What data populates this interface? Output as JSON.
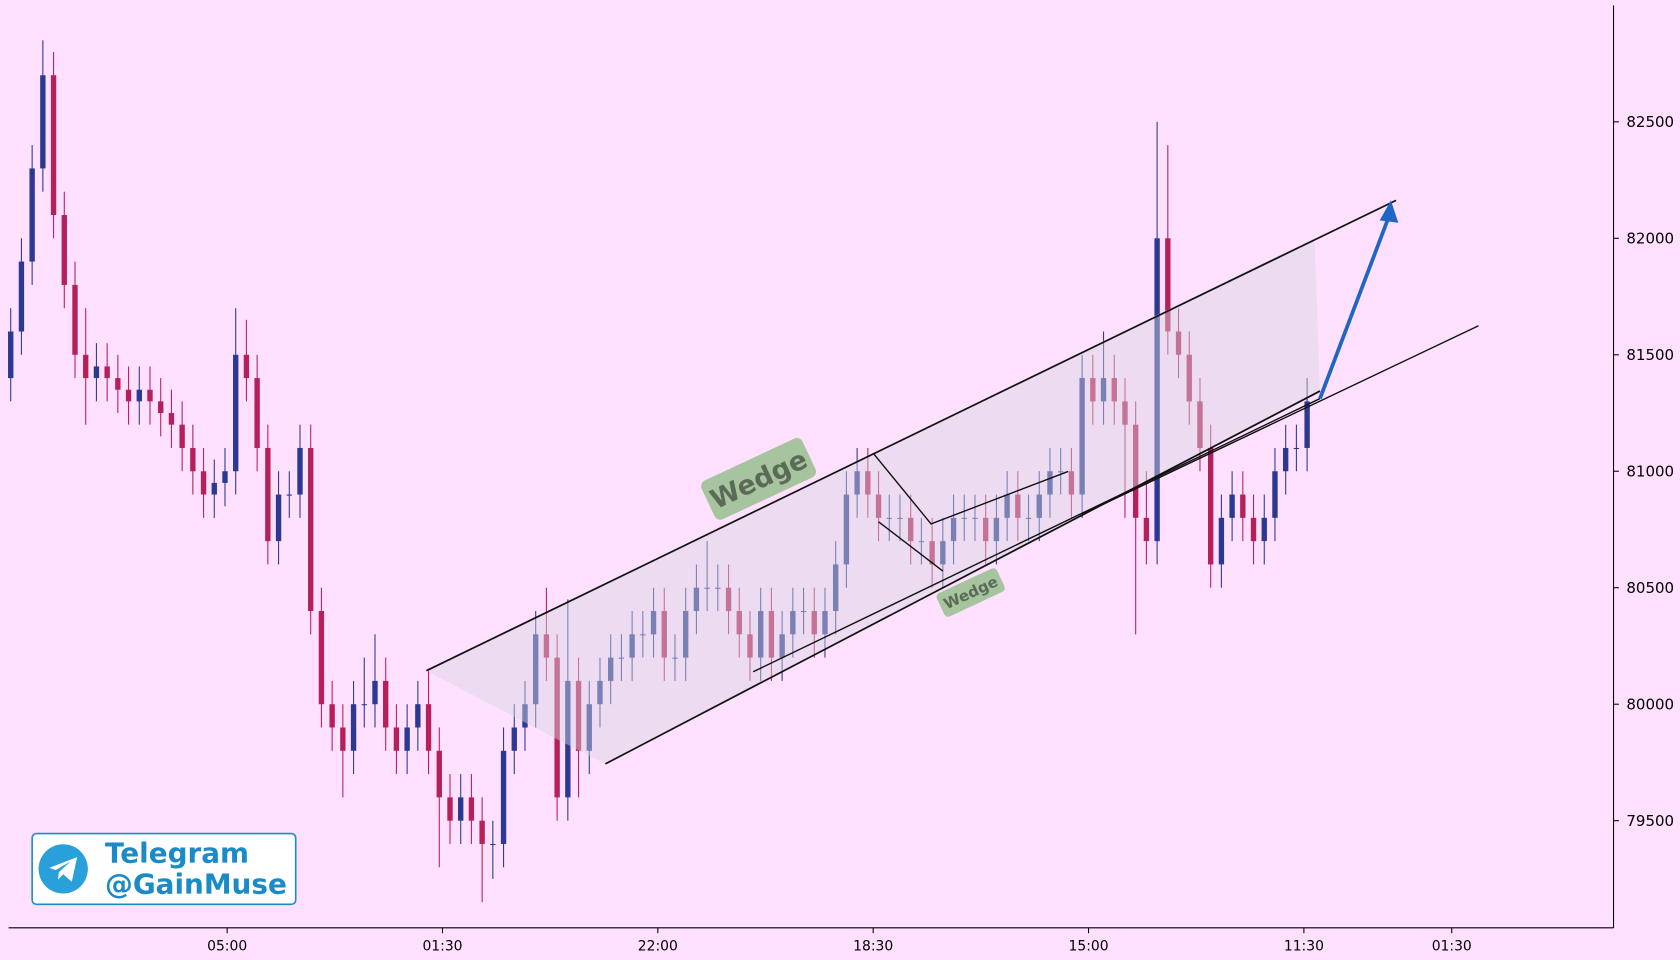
{
  "chart_data": {
    "type": "candlestick",
    "x": [
      0,
      1,
      2,
      3,
      4,
      5,
      6,
      7,
      8,
      9,
      10,
      11,
      12,
      13,
      14,
      15,
      16,
      17,
      18,
      19,
      20,
      21,
      22,
      23,
      24,
      25,
      26,
      27,
      28,
      29,
      30,
      31,
      32,
      33,
      34,
      35,
      36,
      37,
      38,
      39,
      40,
      41,
      42,
      43,
      44,
      45,
      46,
      47,
      48,
      49,
      50,
      51,
      52,
      53,
      54,
      55,
      56,
      57,
      58,
      59,
      60,
      61,
      62,
      63,
      64,
      65,
      66,
      67,
      68,
      69,
      70,
      71,
      72,
      73,
      74,
      75,
      76,
      77,
      78,
      79,
      80,
      81,
      82,
      83,
      84,
      85,
      86,
      87,
      88,
      89,
      90,
      91,
      92,
      93,
      94,
      95,
      96,
      97,
      98,
      99,
      100,
      101,
      102,
      103,
      104,
      105,
      106,
      107,
      108,
      109,
      110,
      111,
      112,
      113,
      114,
      115,
      116,
      117,
      118,
      119,
      120,
      121
    ],
    "open": [
      81400,
      81600,
      81900,
      82300,
      82700,
      82100,
      81800,
      81500,
      81400,
      81450,
      81400,
      81350,
      81300,
      81350,
      81300,
      81250,
      81200,
      81100,
      81000,
      80900,
      80950,
      81000,
      81500,
      81400,
      81100,
      80700,
      80900,
      80900,
      81100,
      80400,
      80000,
      79900,
      79800,
      80000,
      80000,
      80100,
      79900,
      79800,
      79900,
      80000,
      79800,
      79600,
      79500,
      79600,
      79500,
      79400,
      79400,
      79800,
      79900,
      80000,
      80300,
      80200,
      79600,
      80100,
      79800,
      80000,
      80100,
      80200,
      80200,
      80300,
      80300,
      80400,
      80200,
      80200,
      80400,
      80500,
      80500,
      80500,
      80400,
      80300,
      80200,
      80400,
      80200,
      80300,
      80400,
      80400,
      80300,
      80400,
      80600,
      80900,
      81000,
      80900,
      80800,
      80800,
      80800,
      80700,
      80700,
      80600,
      80700,
      80800,
      80800,
      80800,
      80700,
      80800,
      80900,
      80800,
      80800,
      80900,
      81000,
      81000,
      80900,
      81400,
      81300,
      81400,
      81300,
      81200,
      80800,
      80700,
      82000,
      81600,
      81500,
      81300,
      81100,
      80600,
      80800,
      80900,
      80800,
      80700,
      80800,
      81000,
      81100,
      81100
    ],
    "high": [
      81700,
      82000,
      82400,
      82850,
      82800,
      82200,
      81900,
      81700,
      81550,
      81550,
      81500,
      81450,
      81450,
      81450,
      81400,
      81350,
      81300,
      81200,
      81100,
      81050,
      81100,
      81700,
      81650,
      81500,
      81200,
      81000,
      81000,
      81200,
      81200,
      80500,
      80100,
      80000,
      80100,
      80200,
      80300,
      80200,
      80000,
      80000,
      80100,
      80150,
      79900,
      79700,
      79700,
      79700,
      79600,
      79500,
      79900,
      80000,
      80100,
      80400,
      80500,
      80300,
      80450,
      80200,
      80100,
      80200,
      80300,
      80300,
      80400,
      80400,
      80500,
      80500,
      80300,
      80500,
      80600,
      80700,
      80600,
      80600,
      80500,
      80400,
      80500,
      80500,
      80400,
      80500,
      80500,
      80500,
      80500,
      80700,
      81000,
      81100,
      81100,
      81000,
      80900,
      80900,
      80900,
      80800,
      80800,
      80800,
      80900,
      80900,
      80900,
      80900,
      80900,
      81000,
      81000,
      80900,
      81000,
      81100,
      81100,
      81100,
      81500,
      81500,
      81600,
      81500,
      81400,
      81300,
      81000,
      82500,
      82400,
      81700,
      81600,
      81400,
      81200,
      80900,
      81000,
      81000,
      80900,
      80900,
      81100,
      81200,
      81200,
      81400
    ],
    "low": [
      81300,
      81500,
      81800,
      82200,
      82000,
      81700,
      81400,
      81200,
      81300,
      81300,
      81250,
      81200,
      81200,
      81200,
      81150,
      81100,
      81000,
      80900,
      80800,
      80800,
      80850,
      80900,
      81300,
      81000,
      80600,
      80600,
      80800,
      80800,
      80300,
      79900,
      79800,
      79600,
      79700,
      79900,
      79900,
      79800,
      79700,
      79700,
      79800,
      79700,
      79300,
      79400,
      79400,
      79400,
      79150,
      79250,
      79300,
      79700,
      79800,
      79900,
      80100,
      79500,
      79500,
      79600,
      79700,
      79900,
      80000,
      80100,
      80100,
      80200,
      80200,
      80100,
      80100,
      80100,
      80300,
      80400,
      80400,
      80300,
      80200,
      80100,
      80100,
      80100,
      80100,
      80200,
      80300,
      80200,
      80200,
      80300,
      80500,
      80800,
      80800,
      80700,
      80700,
      80700,
      80600,
      80600,
      80500,
      80500,
      80600,
      80700,
      80700,
      80600,
      80600,
      80700,
      80700,
      80700,
      80700,
      80800,
      80900,
      80800,
      80800,
      81200,
      81200,
      81200,
      80800,
      80300,
      80600,
      80600,
      81500,
      81400,
      81200,
      81000,
      80500,
      80500,
      80700,
      80700,
      80600,
      80600,
      80700,
      80900,
      81000,
      81000
    ],
    "close": [
      81600,
      81900,
      82300,
      82700,
      82100,
      81800,
      81500,
      81400,
      81450,
      81400,
      81350,
      81300,
      81350,
      81300,
      81250,
      81200,
      81100,
      81000,
      80900,
      80950,
      81000,
      81500,
      81400,
      81100,
      80700,
      80900,
      80900,
      81100,
      80400,
      80000,
      79900,
      79800,
      80000,
      80000,
      80100,
      79900,
      79800,
      79900,
      80000,
      79800,
      79600,
      79500,
      79600,
      79500,
      79400,
      79400,
      79800,
      79900,
      80000,
      80300,
      80200,
      79600,
      80100,
      79800,
      80000,
      80100,
      80200,
      80200,
      80300,
      80300,
      80400,
      80200,
      80200,
      80400,
      80500,
      80500,
      80500,
      80400,
      80300,
      80200,
      80400,
      80200,
      80300,
      80400,
      80400,
      80300,
      80400,
      80600,
      80900,
      81000,
      80900,
      80800,
      80800,
      80800,
      80700,
      80700,
      80600,
      80700,
      80800,
      80800,
      80800,
      80700,
      80800,
      80900,
      80800,
      80800,
      80900,
      81000,
      81000,
      80900,
      81400,
      81300,
      81400,
      81300,
      81200,
      80800,
      80700,
      82000,
      81600,
      81500,
      81300,
      81100,
      80600,
      80800,
      80900,
      80800,
      80700,
      80800,
      81000,
      81100,
      81100,
      81300
    ],
    "up_color": "#2b3990",
    "down_color": "#b5205a",
    "xlim": [
      -0.2,
      149.6
    ],
    "xticks": [
      {
        "value": 20.2,
        "label": "05:00"
      },
      {
        "value": 40.3,
        "label": "01:30"
      },
      {
        "value": 60.4,
        "label": "22:00"
      },
      {
        "value": 80.5,
        "label": "18:30"
      },
      {
        "value": 100.6,
        "label": "15:00"
      },
      {
        "value": 120.7,
        "label": "11:30"
      },
      {
        "value": 134.5,
        "label": "01:30"
      }
    ],
    "ylim": [
      79040,
      83000
    ],
    "yticks": [
      79500,
      80000,
      80500,
      81000,
      81500,
      82000,
      82500
    ],
    "annotations": [
      "Wedge",
      "Wedge"
    ],
    "watermark": [
      "Telegram",
      "@GainMuse"
    ]
  }
}
